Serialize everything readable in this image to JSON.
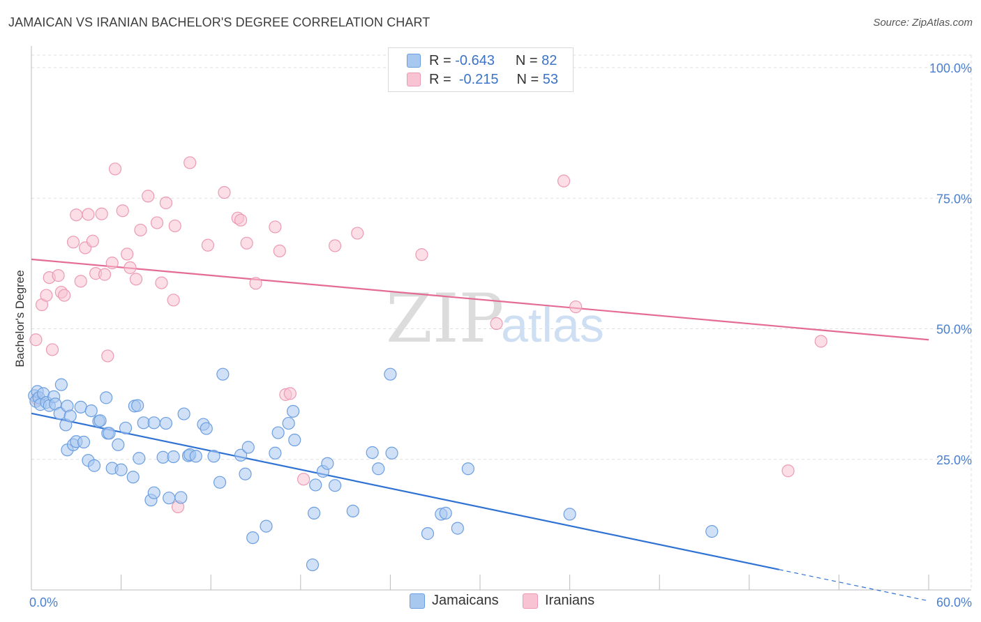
{
  "title": "JAMAICAN VS IRANIAN BACHELOR'S DEGREE CORRELATION CHART",
  "source": "Source: ZipAtlas.com",
  "watermark": {
    "zip": "ZIP",
    "atlas": "atlas"
  },
  "colors": {
    "jamaicans_fill": "#a9c8f0",
    "jamaicans_stroke": "#6b9ee0",
    "jamaicans_line": "#2f72d4",
    "iranians_fill": "#f8c3d2",
    "iranians_stroke": "#ec9ab4",
    "iranians_line": "#e46b95",
    "tick_text": "#4a7fd0",
    "grid": "#dddddd"
  },
  "legend": {
    "rows": [
      {
        "r_label": "R =",
        "r_value": "-0.643",
        "n_label": "N =",
        "n_value": "82"
      },
      {
        "r_label": "R =",
        "r_value": "-0.215",
        "n_label": "N =",
        "n_value": "53"
      }
    ]
  },
  "bottom_legend": [
    "Jamaicans",
    "Iranians"
  ],
  "chart_data": {
    "type": "scatter",
    "title": "JAMAICAN VS IRANIAN BACHELOR'S DEGREE CORRELATION CHART",
    "xlabel": "",
    "ylabel": "Bachelor's Degree",
    "xlim": [
      0,
      60
    ],
    "ylim": [
      0,
      100
    ],
    "x_ticks": [
      "0.0%",
      "60.0%"
    ],
    "y_ticks": [
      {
        "value": 25,
        "label": "25.0%"
      },
      {
        "value": 50,
        "label": "50.0%"
      },
      {
        "value": 75,
        "label": "75.0%"
      },
      {
        "value": 100,
        "label": "100.0%"
      }
    ],
    "grid": true,
    "legend_position": "top-center",
    "series": [
      {
        "name": "Jamaicans",
        "r": -0.643,
        "n": 82,
        "trend": {
          "x": [
            0,
            50
          ],
          "y": [
            33.8,
            3.9
          ],
          "dashed_to": [
            60,
            -2.1
          ]
        },
        "points": [
          [
            0.2,
            37.2
          ],
          [
            0.3,
            36.1
          ],
          [
            0.4,
            38.0
          ],
          [
            0.5,
            36.8
          ],
          [
            0.6,
            35.5
          ],
          [
            0.8,
            37.6
          ],
          [
            1.0,
            35.9
          ],
          [
            1.2,
            35.3
          ],
          [
            1.5,
            37.0
          ],
          [
            1.6,
            35.6
          ],
          [
            1.9,
            33.8
          ],
          [
            2.0,
            39.3
          ],
          [
            2.3,
            31.6
          ],
          [
            2.4,
            35.2
          ],
          [
            2.4,
            26.8
          ],
          [
            2.6,
            33.3
          ],
          [
            2.8,
            27.8
          ],
          [
            3.0,
            28.4
          ],
          [
            3.3,
            35.0
          ],
          [
            3.5,
            28.3
          ],
          [
            3.8,
            24.8
          ],
          [
            4.0,
            34.3
          ],
          [
            4.2,
            23.8
          ],
          [
            4.5,
            32.3
          ],
          [
            4.6,
            32.4
          ],
          [
            5.0,
            36.8
          ],
          [
            5.1,
            30.0
          ],
          [
            5.2,
            30.0
          ],
          [
            5.4,
            23.3
          ],
          [
            5.8,
            27.8
          ],
          [
            6.0,
            23.0
          ],
          [
            6.3,
            31.0
          ],
          [
            6.8,
            21.6
          ],
          [
            6.9,
            35.2
          ],
          [
            7.1,
            35.3
          ],
          [
            7.2,
            25.2
          ],
          [
            7.5,
            32.0
          ],
          [
            8.0,
            17.2
          ],
          [
            8.2,
            18.6
          ],
          [
            8.2,
            32.0
          ],
          [
            8.8,
            25.4
          ],
          [
            9.0,
            31.9
          ],
          [
            9.2,
            17.6
          ],
          [
            9.5,
            25.5
          ],
          [
            10.0,
            17.7
          ],
          [
            10.2,
            33.7
          ],
          [
            10.5,
            25.7
          ],
          [
            10.6,
            25.9
          ],
          [
            11.0,
            25.6
          ],
          [
            11.5,
            31.7
          ],
          [
            11.7,
            30.9
          ],
          [
            12.2,
            25.6
          ],
          [
            12.6,
            20.6
          ],
          [
            12.8,
            41.3
          ],
          [
            14.0,
            25.8
          ],
          [
            14.5,
            27.3
          ],
          [
            14.3,
            22.2
          ],
          [
            14.8,
            10.0
          ],
          [
            15.7,
            12.2
          ],
          [
            16.3,
            26.2
          ],
          [
            16.5,
            30.1
          ],
          [
            17.2,
            31.9
          ],
          [
            17.5,
            34.2
          ],
          [
            17.6,
            28.7
          ],
          [
            18.8,
            4.8
          ],
          [
            18.9,
            14.7
          ],
          [
            19.0,
            20.1
          ],
          [
            19.5,
            22.7
          ],
          [
            19.8,
            24.2
          ],
          [
            20.3,
            20.0
          ],
          [
            21.5,
            15.1
          ],
          [
            23.2,
            23.2
          ],
          [
            24.0,
            41.3
          ],
          [
            24.1,
            26.2
          ],
          [
            26.5,
            10.8
          ],
          [
            27.4,
            14.5
          ],
          [
            27.7,
            14.7
          ],
          [
            28.5,
            11.8
          ],
          [
            29.2,
            23.2
          ],
          [
            36.0,
            14.5
          ],
          [
            45.5,
            11.2
          ],
          [
            22.8,
            26.3
          ]
        ]
      },
      {
        "name": "Iranians",
        "r": -0.215,
        "n": 53,
        "trend": {
          "x": [
            0,
            60
          ],
          "y": [
            63.3,
            47.9
          ]
        },
        "points": [
          [
            0.3,
            47.9
          ],
          [
            0.4,
            36.5
          ],
          [
            0.7,
            54.6
          ],
          [
            1.0,
            56.4
          ],
          [
            1.2,
            59.8
          ],
          [
            1.4,
            46.0
          ],
          [
            1.8,
            60.2
          ],
          [
            2.0,
            57.0
          ],
          [
            2.2,
            56.4
          ],
          [
            2.8,
            66.6
          ],
          [
            3.0,
            71.8
          ],
          [
            3.3,
            59.1
          ],
          [
            3.6,
            65.5
          ],
          [
            3.8,
            71.9
          ],
          [
            4.1,
            66.8
          ],
          [
            4.3,
            60.6
          ],
          [
            4.7,
            72.0
          ],
          [
            4.9,
            60.4
          ],
          [
            5.1,
            44.8
          ],
          [
            5.4,
            62.6
          ],
          [
            5.6,
            80.6
          ],
          [
            6.1,
            72.6
          ],
          [
            6.4,
            64.3
          ],
          [
            6.6,
            61.7
          ],
          [
            7.0,
            59.5
          ],
          [
            7.3,
            68.9
          ],
          [
            7.8,
            75.4
          ],
          [
            8.4,
            70.3
          ],
          [
            8.7,
            58.8
          ],
          [
            9.0,
            74.1
          ],
          [
            9.5,
            55.5
          ],
          [
            9.6,
            69.7
          ],
          [
            9.8,
            15.9
          ],
          [
            10.6,
            81.8
          ],
          [
            11.8,
            66.0
          ],
          [
            12.9,
            76.1
          ],
          [
            13.8,
            71.2
          ],
          [
            14.0,
            70.8
          ],
          [
            14.4,
            66.4
          ],
          [
            15.0,
            58.7
          ],
          [
            16.3,
            69.5
          ],
          [
            16.6,
            64.9
          ],
          [
            17.0,
            37.4
          ],
          [
            18.2,
            21.2
          ],
          [
            20.3,
            65.9
          ],
          [
            21.8,
            68.3
          ],
          [
            26.1,
            64.2
          ],
          [
            31.1,
            51.0
          ],
          [
            35.6,
            78.3
          ],
          [
            36.4,
            54.2
          ],
          [
            50.6,
            22.8
          ],
          [
            52.8,
            47.6
          ],
          [
            17.3,
            37.6
          ]
        ]
      }
    ]
  }
}
